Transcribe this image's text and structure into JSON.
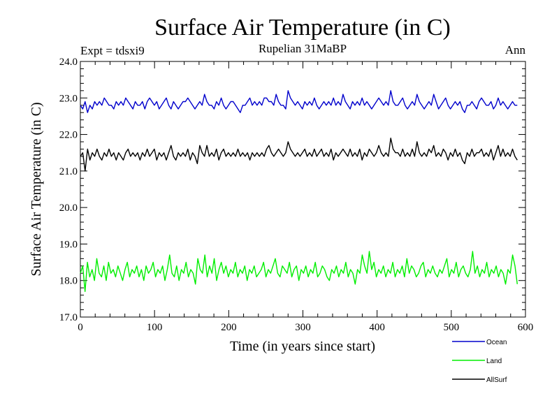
{
  "chart_data": {
    "type": "line",
    "title": "Surface Air Temperature (in C)",
    "subtitle": "Rupelian  31MaBP",
    "expt_label": "Expt = tdsxi9",
    "season_label": "Ann",
    "xlabel": "Time (in years since start)",
    "ylabel": "Surface Air Temperature (in C)",
    "xlim": [
      0,
      600
    ],
    "ylim": [
      17.0,
      24.0
    ],
    "x_ticks": [
      0,
      100,
      200,
      300,
      400,
      500,
      600
    ],
    "x_tick_labels": [
      "0",
      "100",
      "200",
      "300",
      "400",
      "500",
      "600"
    ],
    "y_ticks": [
      17.0,
      18.0,
      19.0,
      20.0,
      21.0,
      22.0,
      23.0,
      24.0
    ],
    "y_tick_labels": [
      "17.0",
      "18.0",
      "19.0",
      "20.0",
      "21.0",
      "22.0",
      "23.0",
      "24.0"
    ],
    "x_range": [
      0,
      589
    ],
    "series": [
      {
        "name": "Ocean",
        "color": "#0000cc",
        "values": [
          22.8,
          22.7,
          22.9,
          22.6,
          22.8,
          22.7,
          22.9,
          22.8,
          22.9,
          22.8,
          23.0,
          22.9,
          22.8,
          22.8,
          22.7,
          22.9,
          22.8,
          22.9,
          22.8,
          23.0,
          22.9,
          22.8,
          22.7,
          22.9,
          22.8,
          22.8,
          22.9,
          22.7,
          22.9,
          23.0,
          22.9,
          22.8,
          22.9,
          22.7,
          22.8,
          22.9,
          23.0,
          22.8,
          22.7,
          22.9,
          22.8,
          22.7,
          22.8,
          22.9,
          22.9,
          23.0,
          22.9,
          22.8,
          22.7,
          22.8,
          22.9,
          22.8,
          23.1,
          22.9,
          22.8,
          22.8,
          22.7,
          22.9,
          22.8,
          23.0,
          22.8,
          22.7,
          22.8,
          22.9,
          22.9,
          22.8,
          22.7,
          22.6,
          22.8,
          22.8,
          22.9,
          23.0,
          22.8,
          22.9,
          22.8,
          22.9,
          22.8,
          23.0,
          23.0,
          22.9,
          22.9,
          22.8,
          23.1,
          22.9,
          22.8,
          22.8,
          22.7,
          23.2,
          23.0,
          22.9,
          22.8,
          22.9,
          22.8,
          22.7,
          22.9,
          22.8,
          22.9,
          22.8,
          23.0,
          22.8,
          22.7,
          22.8,
          22.9,
          22.8,
          22.9,
          22.8,
          23.0,
          22.8,
          22.9,
          22.8,
          23.1,
          22.9,
          22.8,
          22.7,
          22.9,
          22.8,
          22.9,
          22.8,
          23.0,
          22.8,
          22.9,
          22.8,
          22.7,
          22.8,
          22.9,
          23.0,
          22.9,
          22.8,
          22.9,
          22.8,
          23.2,
          22.9,
          22.8,
          22.8,
          22.9,
          23.0,
          22.8,
          22.7,
          22.8,
          22.9,
          22.8,
          23.1,
          22.9,
          22.8,
          22.7,
          22.8,
          22.9,
          22.8,
          23.1,
          22.9,
          22.7,
          22.8,
          22.9,
          23.0,
          22.8,
          22.7,
          22.8,
          22.9,
          22.8,
          22.9,
          22.7,
          22.6,
          22.8,
          22.8,
          22.9,
          22.8,
          22.7,
          22.9,
          23.0,
          22.9,
          22.8,
          22.8,
          22.9,
          22.7,
          22.8,
          23.0,
          22.8,
          22.9,
          22.8,
          22.7,
          22.8,
          22.9,
          22.8,
          22.8
        ]
      },
      {
        "name": "Land",
        "color": "#00ee00",
        "values": [
          18.2,
          18.4,
          17.7,
          18.5,
          18.1,
          18.3,
          18.0,
          18.6,
          18.2,
          18.1,
          18.4,
          18.0,
          18.5,
          18.2,
          18.3,
          18.1,
          18.4,
          18.2,
          18.0,
          18.3,
          18.5,
          18.1,
          18.3,
          18.2,
          18.4,
          18.1,
          18.3,
          18.0,
          18.4,
          18.2,
          18.3,
          18.5,
          18.1,
          18.3,
          18.2,
          18.4,
          18.0,
          18.3,
          18.7,
          18.2,
          18.1,
          18.4,
          18.0,
          18.3,
          18.2,
          18.5,
          18.1,
          18.3,
          18.2,
          17.9,
          18.6,
          18.3,
          18.2,
          18.7,
          18.1,
          18.4,
          18.2,
          18.6,
          18.0,
          18.3,
          18.5,
          18.2,
          18.4,
          18.1,
          18.3,
          18.2,
          18.5,
          18.1,
          18.3,
          18.2,
          18.4,
          18.0,
          18.3,
          18.2,
          18.4,
          18.1,
          18.2,
          18.3,
          18.5,
          18.1,
          18.3,
          18.2,
          18.4,
          18.6,
          18.2,
          18.1,
          18.4,
          18.3,
          18.2,
          18.5,
          18.1,
          18.3,
          18.4,
          18.0,
          18.3,
          18.2,
          18.4,
          18.1,
          18.3,
          18.2,
          18.5,
          18.1,
          18.2,
          18.4,
          18.3,
          18.1,
          18.0,
          18.3,
          18.2,
          18.4,
          18.1,
          18.3,
          18.2,
          18.5,
          18.1,
          18.3,
          18.2,
          17.9,
          18.3,
          18.2,
          18.7,
          18.4,
          18.2,
          18.8,
          18.3,
          18.5,
          18.1,
          18.3,
          18.2,
          18.4,
          18.1,
          18.3,
          18.2,
          18.5,
          18.1,
          18.3,
          18.2,
          18.4,
          18.1,
          18.6,
          18.2,
          18.4,
          18.3,
          18.1,
          18.2,
          18.4,
          18.5,
          18.1,
          18.3,
          18.2,
          18.4,
          18.2,
          18.1,
          18.3,
          18.2,
          18.4,
          18.6,
          18.1,
          18.3,
          18.2,
          18.5,
          18.1,
          18.3,
          18.4,
          18.2,
          18.1,
          18.3,
          18.8,
          18.2,
          18.4,
          18.1,
          18.3,
          18.2,
          18.5,
          18.1,
          18.3,
          18.2,
          18.4,
          18.1,
          18.3,
          18.2,
          17.9,
          18.3,
          18.2,
          18.7,
          18.4,
          17.9
        ]
      },
      {
        "name": "AllSurf",
        "color": "#000000",
        "values": [
          21.4,
          21.5,
          21.0,
          21.6,
          21.3,
          21.5,
          21.4,
          21.6,
          21.4,
          21.3,
          21.5,
          21.4,
          21.6,
          21.4,
          21.5,
          21.3,
          21.5,
          21.4,
          21.3,
          21.5,
          21.6,
          21.4,
          21.5,
          21.4,
          21.5,
          21.3,
          21.5,
          21.4,
          21.6,
          21.4,
          21.5,
          21.6,
          21.3,
          21.5,
          21.4,
          21.5,
          21.3,
          21.5,
          21.7,
          21.4,
          21.3,
          21.5,
          21.4,
          21.5,
          21.4,
          21.6,
          21.3,
          21.5,
          21.4,
          21.2,
          21.7,
          21.5,
          21.4,
          21.7,
          21.4,
          21.5,
          21.4,
          21.6,
          21.3,
          21.5,
          21.6,
          21.4,
          21.5,
          21.4,
          21.5,
          21.4,
          21.6,
          21.4,
          21.5,
          21.4,
          21.5,
          21.3,
          21.5,
          21.4,
          21.5,
          21.4,
          21.5,
          21.4,
          21.6,
          21.7,
          21.5,
          21.4,
          21.5,
          21.6,
          21.5,
          21.4,
          21.5,
          21.8,
          21.6,
          21.5,
          21.4,
          21.5,
          21.4,
          21.5,
          21.6,
          21.4,
          21.5,
          21.4,
          21.6,
          21.4,
          21.5,
          21.6,
          21.4,
          21.5,
          21.4,
          21.6,
          21.3,
          21.5,
          21.4,
          21.5,
          21.6,
          21.5,
          21.4,
          21.6,
          21.4,
          21.5,
          21.4,
          21.6,
          21.3,
          21.5,
          21.4,
          21.6,
          21.5,
          21.4,
          21.5,
          21.7,
          21.5,
          21.4,
          21.5,
          21.4,
          21.9,
          21.6,
          21.5,
          21.5,
          21.4,
          21.6,
          21.4,
          21.5,
          21.4,
          21.6,
          21.4,
          21.8,
          21.5,
          21.4,
          21.5,
          21.4,
          21.6,
          21.5,
          21.7,
          21.4,
          21.5,
          21.4,
          21.6,
          21.5,
          21.3,
          21.5,
          21.4,
          21.6,
          21.4,
          21.5,
          21.3,
          21.2,
          21.5,
          21.4,
          21.6,
          21.4,
          21.5,
          21.5,
          21.6,
          21.4,
          21.5,
          21.4,
          21.6,
          21.3,
          21.5,
          21.7,
          21.4,
          21.6,
          21.4,
          21.5,
          21.4,
          21.6,
          21.4,
          21.3
        ]
      }
    ],
    "legend": [
      "Ocean",
      "Land",
      "AllSurf"
    ],
    "legend_position": "bottom-right",
    "grid": false
  }
}
